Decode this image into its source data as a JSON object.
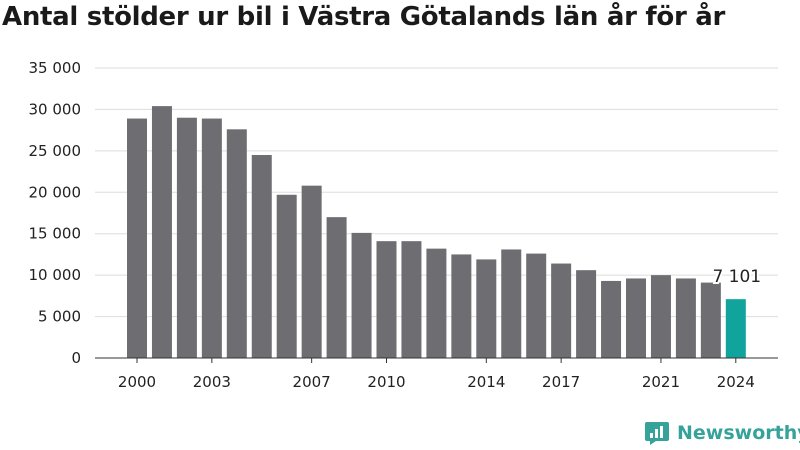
{
  "chart_data": {
    "type": "bar",
    "title": "Antal stölder ur bil i Västra Götalands län år för år",
    "xlabel": "",
    "ylabel": "",
    "ylim": [
      0,
      35000
    ],
    "y_ticks": [
      0,
      5000,
      10000,
      15000,
      20000,
      25000,
      30000,
      35000
    ],
    "y_tick_labels": [
      "0",
      "5 000",
      "10 000",
      "15 000",
      "20 000",
      "25 000",
      "30 000",
      "35 000"
    ],
    "categories": [
      2000,
      2001,
      2002,
      2003,
      2004,
      2005,
      2006,
      2007,
      2008,
      2009,
      2010,
      2011,
      2012,
      2013,
      2014,
      2015,
      2016,
      2017,
      2018,
      2019,
      2020,
      2021,
      2022,
      2023,
      2024
    ],
    "x_tick_labels": [
      "2000",
      "2003",
      "2007",
      "2010",
      "2014",
      "2017",
      "2021",
      "2024"
    ],
    "values": [
      28900,
      30400,
      29000,
      28900,
      27600,
      24500,
      19700,
      20800,
      17000,
      15100,
      14100,
      14100,
      13200,
      12500,
      11900,
      13100,
      12600,
      11400,
      10600,
      9300,
      9600,
      10000,
      9600,
      9100,
      7101
    ],
    "grid": true,
    "bar_color": "#6e6d72",
    "highlight_color": "#11a49c",
    "annotation": {
      "index": 24,
      "label": "7 101"
    }
  },
  "branding": {
    "name": "Newsworthy",
    "icon": "newsworthy-logo-icon",
    "color": "#36a39b"
  }
}
